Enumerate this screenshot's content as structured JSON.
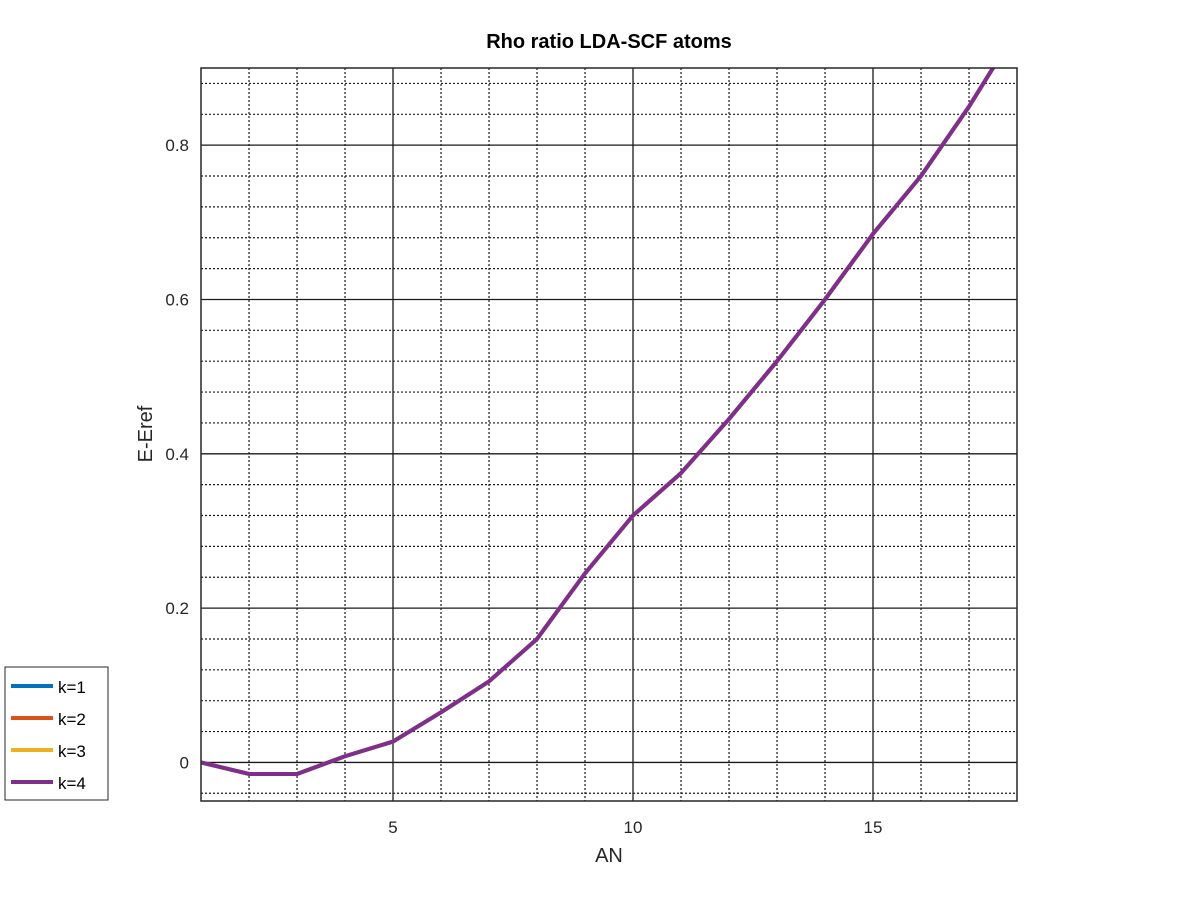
{
  "chart_data": {
    "type": "line",
    "title": "Rho ratio LDA-SCF atoms",
    "xlabel": "AN",
    "ylabel": "E-Eref",
    "xlim": [
      1,
      18
    ],
    "ylim": [
      -0.05,
      0.9
    ],
    "xticks": [
      5,
      10,
      15
    ],
    "xtick_labels": [
      "5",
      "10",
      "15"
    ],
    "yticks": [
      0,
      0.2,
      0.4,
      0.6,
      0.8
    ],
    "ytick_labels": [
      "0",
      "0.2",
      "0.4",
      "0.6",
      "0.8"
    ],
    "grid": true,
    "minor_grid": true,
    "legend_position": "outside-bottom-left",
    "x": [
      1,
      2,
      3,
      4,
      5,
      6,
      7,
      8,
      9,
      10,
      11,
      12,
      13,
      14,
      15,
      16,
      17,
      18
    ],
    "series": [
      {
        "name": "k=1",
        "color": "#0072BD",
        "values": [
          0,
          -0.015,
          -0.015,
          0.008,
          0.027,
          0.065,
          0.105,
          0.16,
          0.245,
          0.32,
          0.375,
          0.445,
          0.52,
          0.6,
          0.685,
          0.76,
          0.85,
          0.95
        ]
      },
      {
        "name": "k=2",
        "color": "#D95319",
        "values": [
          0,
          -0.015,
          -0.015,
          0.008,
          0.027,
          0.065,
          0.105,
          0.16,
          0.245,
          0.32,
          0.375,
          0.445,
          0.52,
          0.6,
          0.685,
          0.76,
          0.85,
          0.95
        ]
      },
      {
        "name": "k=3",
        "color": "#EDB120",
        "values": [
          0,
          -0.015,
          -0.015,
          0.008,
          0.027,
          0.065,
          0.105,
          0.16,
          0.245,
          0.32,
          0.375,
          0.445,
          0.52,
          0.6,
          0.685,
          0.76,
          0.85,
          0.95
        ]
      },
      {
        "name": "k=4",
        "color": "#7E2F8E",
        "values": [
          0,
          -0.015,
          -0.015,
          0.008,
          0.027,
          0.065,
          0.105,
          0.16,
          0.245,
          0.32,
          0.375,
          0.445,
          0.52,
          0.6,
          0.685,
          0.76,
          0.85,
          0.95
        ]
      }
    ]
  }
}
